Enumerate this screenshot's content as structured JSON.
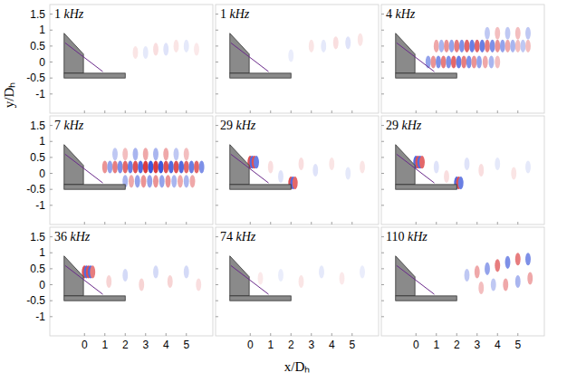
{
  "chart_data": [
    {
      "type": "heatmap",
      "title": "1 kHz",
      "xlim": [
        -1.7,
        6.3
      ],
      "ylim": [
        -1.6,
        1.8
      ],
      "xticks": [
        0,
        1,
        2,
        3,
        4,
        5
      ],
      "yticks": [
        -1,
        -0.5,
        0,
        0.5,
        1,
        1.5
      ],
      "tick_labels": "y",
      "y_label": "y/Dₕ",
      "clim": [
        -1,
        1
      ],
      "cells": [
        [
          2.5,
          0.3,
          0.12
        ],
        [
          3.0,
          0.3,
          -0.12
        ],
        [
          3.5,
          0.4,
          0.15
        ],
        [
          4.0,
          0.4,
          -0.15
        ],
        [
          4.5,
          0.5,
          0.12
        ],
        [
          5.0,
          0.5,
          -0.12
        ],
        [
          5.5,
          0.4,
          0.1
        ]
      ]
    },
    {
      "type": "heatmap",
      "title": "1 kHz",
      "xlim": [
        -1.7,
        6.3
      ],
      "ylim": [
        -1.6,
        1.8
      ],
      "xticks": [
        0,
        1,
        2,
        3,
        4,
        5
      ],
      "yticks": [
        -1,
        -0.5,
        0,
        0.5,
        1,
        1.5
      ],
      "tick_labels": false,
      "clim": [
        -1,
        1
      ],
      "cells": [
        [
          2.0,
          0.2,
          -0.1
        ],
        [
          3.0,
          0.5,
          0.12
        ],
        [
          3.6,
          0.5,
          -0.12
        ],
        [
          4.2,
          0.6,
          0.15
        ],
        [
          4.8,
          0.6,
          -0.15
        ],
        [
          5.4,
          0.7,
          0.12
        ]
      ]
    },
    {
      "type": "heatmap",
      "title": "4 kHz",
      "xlim": [
        -1.7,
        6.3
      ],
      "ylim": [
        -1.6,
        1.8
      ],
      "xticks": [
        0,
        1,
        2,
        3,
        4,
        5
      ],
      "yticks": [
        -1,
        -0.5,
        0,
        0.5,
        1,
        1.5
      ],
      "tick_labels": false,
      "clim": [
        -1,
        1
      ],
      "cells": [
        [
          1.0,
          0.5,
          0.4
        ],
        [
          1.25,
          0.5,
          -0.4
        ],
        [
          1.5,
          0.5,
          0.5
        ],
        [
          1.75,
          0.5,
          -0.5
        ],
        [
          2.0,
          0.5,
          0.6
        ],
        [
          2.25,
          0.5,
          -0.6
        ],
        [
          2.5,
          0.5,
          0.7
        ],
        [
          2.75,
          0.5,
          -0.7
        ],
        [
          3.0,
          0.5,
          0.7
        ],
        [
          3.25,
          0.5,
          -0.7
        ],
        [
          3.5,
          0.5,
          0.6
        ],
        [
          3.75,
          0.5,
          -0.6
        ],
        [
          4.0,
          0.5,
          0.5
        ],
        [
          4.25,
          0.5,
          -0.5
        ],
        [
          4.5,
          0.5,
          0.4
        ],
        [
          4.75,
          0.5,
          -0.4
        ],
        [
          5.0,
          0.5,
          0.3
        ],
        [
          5.25,
          0.5,
          -0.3
        ],
        [
          5.5,
          0.5,
          0.3
        ],
        [
          0.6,
          0.0,
          -0.5
        ],
        [
          0.85,
          0.0,
          0.5
        ],
        [
          1.1,
          0.0,
          -0.6
        ],
        [
          1.35,
          0.0,
          0.6
        ],
        [
          1.6,
          0.0,
          -0.6
        ],
        [
          1.85,
          0.0,
          0.7
        ],
        [
          2.1,
          0.0,
          -0.7
        ],
        [
          2.35,
          0.0,
          0.6
        ],
        [
          2.6,
          0.0,
          -0.6
        ],
        [
          2.85,
          0.0,
          0.5
        ],
        [
          3.1,
          0.0,
          -0.5
        ],
        [
          3.4,
          0.0,
          0.4
        ],
        [
          3.7,
          0.0,
          -0.4
        ],
        [
          4.0,
          0.0,
          0.3
        ],
        [
          3.5,
          0.9,
          -0.3
        ],
        [
          4.0,
          0.9,
          0.3
        ],
        [
          4.5,
          0.9,
          -0.3
        ],
        [
          5.0,
          0.9,
          0.3
        ],
        [
          5.5,
          0.9,
          -0.3
        ]
      ]
    },
    {
      "type": "heatmap",
      "title": "7 kHz",
      "xlim": [
        -1.7,
        6.3
      ],
      "ylim": [
        -1.6,
        1.8
      ],
      "xticks": [
        0,
        1,
        2,
        3,
        4,
        5
      ],
      "yticks": [
        -1,
        -0.5,
        0,
        0.5,
        1,
        1.5
      ],
      "tick_labels": "y",
      "clim": [
        -1,
        1
      ],
      "cells": [
        [
          1.0,
          0.2,
          0.5
        ],
        [
          1.25,
          0.2,
          -0.5
        ],
        [
          1.5,
          0.2,
          0.6
        ],
        [
          1.75,
          0.2,
          -0.6
        ],
        [
          2.0,
          0.2,
          0.7
        ],
        [
          2.25,
          0.2,
          -0.7
        ],
        [
          2.5,
          0.2,
          0.8
        ],
        [
          2.75,
          0.2,
          -0.8
        ],
        [
          3.0,
          0.2,
          0.9
        ],
        [
          3.25,
          0.2,
          -0.9
        ],
        [
          3.5,
          0.2,
          0.9
        ],
        [
          3.75,
          0.2,
          -0.9
        ],
        [
          4.0,
          0.2,
          0.8
        ],
        [
          4.25,
          0.2,
          -0.8
        ],
        [
          4.5,
          0.2,
          0.8
        ],
        [
          4.75,
          0.2,
          -0.8
        ],
        [
          5.0,
          0.2,
          0.7
        ],
        [
          5.25,
          0.2,
          -0.7
        ],
        [
          5.5,
          0.2,
          0.7
        ],
        [
          5.75,
          0.2,
          -0.6
        ],
        [
          2.0,
          -0.25,
          -0.4
        ],
        [
          2.3,
          -0.25,
          0.4
        ],
        [
          2.6,
          -0.25,
          -0.5
        ],
        [
          2.9,
          -0.25,
          0.5
        ],
        [
          3.2,
          -0.25,
          -0.5
        ],
        [
          3.5,
          -0.25,
          0.5
        ],
        [
          3.8,
          -0.25,
          -0.5
        ],
        [
          4.1,
          -0.25,
          0.5
        ],
        [
          4.4,
          -0.25,
          -0.4
        ],
        [
          4.7,
          -0.25,
          0.4
        ],
        [
          5.0,
          -0.25,
          -0.4
        ],
        [
          5.3,
          -0.25,
          0.4
        ],
        [
          1.5,
          0.6,
          -0.3
        ],
        [
          2.0,
          0.6,
          0.3
        ],
        [
          2.5,
          0.6,
          -0.4
        ],
        [
          3.0,
          0.6,
          0.4
        ],
        [
          3.5,
          0.6,
          -0.4
        ],
        [
          4.0,
          0.6,
          0.4
        ],
        [
          4.5,
          0.6,
          -0.3
        ],
        [
          5.0,
          0.6,
          0.3
        ]
      ]
    },
    {
      "type": "heatmap",
      "title": "29 kHz",
      "xlim": [
        -1.7,
        6.3
      ],
      "ylim": [
        -1.6,
        1.8
      ],
      "xticks": [
        0,
        1,
        2,
        3,
        4,
        5
      ],
      "yticks": [
        -1,
        -0.5,
        0,
        0.5,
        1,
        1.5
      ],
      "tick_labels": false,
      "clim": [
        -1,
        1
      ],
      "cells": [
        [
          0.0,
          0.35,
          0.8
        ],
        [
          0.1,
          0.35,
          -0.8
        ],
        [
          0.2,
          0.35,
          0.8
        ],
        [
          0.3,
          0.35,
          -0.7
        ],
        [
          2.0,
          -0.3,
          0.8
        ],
        [
          2.1,
          -0.3,
          -0.8
        ],
        [
          2.2,
          -0.3,
          0.7
        ],
        [
          1.0,
          0.2,
          0.15
        ],
        [
          1.5,
          -0.1,
          -0.15
        ],
        [
          2.5,
          0.3,
          0.15
        ],
        [
          3.2,
          0.1,
          -0.15
        ],
        [
          4.0,
          0.3,
          0.12
        ],
        [
          4.8,
          0.0,
          -0.12
        ],
        [
          5.5,
          0.2,
          0.12
        ]
      ]
    },
    {
      "type": "heatmap",
      "title": "29 kHz",
      "xlim": [
        -1.7,
        6.3
      ],
      "ylim": [
        -1.6,
        1.8
      ],
      "xticks": [
        0,
        1,
        2,
        3,
        4,
        5
      ],
      "yticks": [
        -1,
        -0.5,
        0,
        0.5,
        1,
        1.5
      ],
      "tick_labels": false,
      "clim": [
        -1,
        1
      ],
      "cells": [
        [
          0.0,
          0.35,
          -0.8
        ],
        [
          0.1,
          0.35,
          0.8
        ],
        [
          0.2,
          0.35,
          -0.8
        ],
        [
          0.3,
          0.35,
          0.7
        ],
        [
          2.0,
          -0.3,
          -0.8
        ],
        [
          2.1,
          -0.3,
          0.8
        ],
        [
          2.2,
          -0.3,
          -0.7
        ],
        [
          1.0,
          0.2,
          -0.15
        ],
        [
          1.5,
          -0.1,
          0.15
        ],
        [
          2.5,
          0.3,
          -0.15
        ],
        [
          3.2,
          0.1,
          0.15
        ],
        [
          4.0,
          0.3,
          -0.12
        ],
        [
          4.8,
          0.0,
          0.12
        ],
        [
          5.5,
          0.2,
          -0.12
        ]
      ]
    },
    {
      "type": "heatmap",
      "title": "36 kHz",
      "xlim": [
        -1.7,
        6.3
      ],
      "ylim": [
        -1.6,
        1.8
      ],
      "xticks": [
        0,
        1,
        2,
        3,
        4,
        5
      ],
      "yticks": [
        -1,
        -0.5,
        0,
        0.5,
        1,
        1.5
      ],
      "tick_labels": true,
      "clim": [
        -1,
        1
      ],
      "cells": [
        [
          0.0,
          0.4,
          0.8
        ],
        [
          0.1,
          0.4,
          -0.8
        ],
        [
          0.2,
          0.4,
          0.8
        ],
        [
          0.3,
          0.4,
          -0.8
        ],
        [
          0.4,
          0.4,
          0.6
        ],
        [
          1.2,
          0.1,
          0.2
        ],
        [
          2.0,
          0.3,
          -0.2
        ],
        [
          2.8,
          0.0,
          0.2
        ],
        [
          3.5,
          0.4,
          -0.2
        ],
        [
          4.2,
          0.1,
          0.2
        ],
        [
          5.0,
          0.4,
          -0.2
        ],
        [
          5.6,
          0.0,
          0.15
        ]
      ]
    },
    {
      "type": "heatmap",
      "title": "74 kHz",
      "xlim": [
        -1.7,
        6.3
      ],
      "ylim": [
        -1.6,
        1.8
      ],
      "xticks": [
        0,
        1,
        2,
        3,
        4,
        5
      ],
      "yticks": [
        -1,
        -0.5,
        0,
        0.5,
        1,
        1.5
      ],
      "tick_labels": "x",
      "x_label": "x/Dₕ",
      "clim": [
        -1,
        1
      ],
      "cells": [
        [
          0.5,
          0.2,
          0.1
        ],
        [
          1.5,
          0.3,
          -0.1
        ],
        [
          2.5,
          0.1,
          0.12
        ],
        [
          3.5,
          0.4,
          -0.12
        ],
        [
          4.5,
          0.2,
          0.1
        ],
        [
          5.5,
          0.4,
          -0.1
        ]
      ]
    },
    {
      "type": "heatmap",
      "title": "110 kHz",
      "xlim": [
        -1.7,
        6.3
      ],
      "ylim": [
        -1.6,
        1.8
      ],
      "xticks": [
        0,
        1,
        2,
        3,
        4,
        5
      ],
      "yticks": [
        -1,
        -0.5,
        0,
        0.5,
        1,
        1.5
      ],
      "tick_labels": "x",
      "clim": [
        -1,
        1
      ],
      "cells": [
        [
          2.5,
          0.3,
          -0.3
        ],
        [
          3.0,
          0.4,
          0.4
        ],
        [
          3.5,
          0.5,
          -0.5
        ],
        [
          4.0,
          0.6,
          0.6
        ],
        [
          4.5,
          0.7,
          -0.6
        ],
        [
          5.0,
          0.8,
          0.6
        ],
        [
          5.5,
          0.8,
          -0.6
        ],
        [
          3.2,
          -0.1,
          0.3
        ],
        [
          3.8,
          0.0,
          -0.3
        ],
        [
          4.4,
          0.0,
          0.4
        ],
        [
          5.0,
          0.1,
          -0.4
        ],
        [
          5.6,
          0.2,
          0.4
        ]
      ]
    }
  ]
}
